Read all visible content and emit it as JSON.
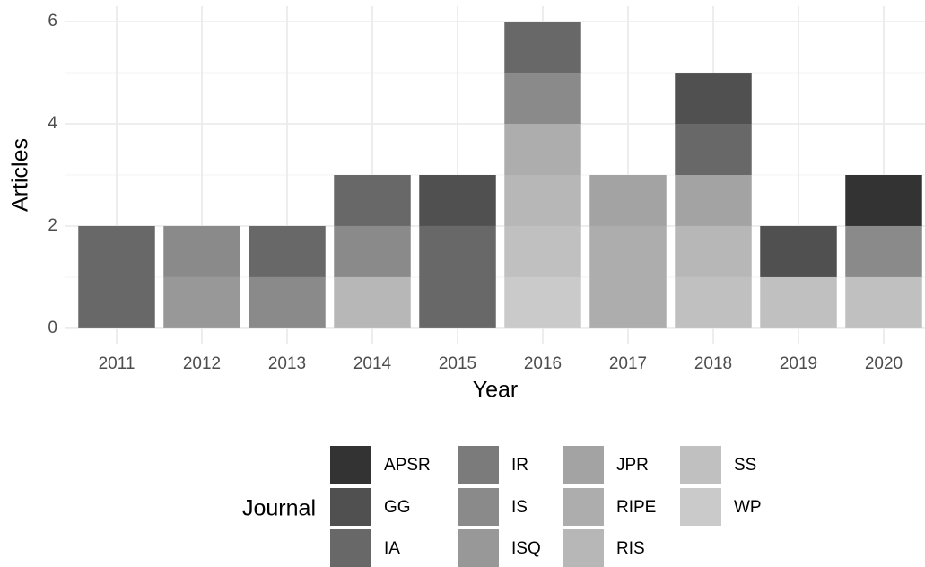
{
  "chart_data": {
    "type": "stacked_bar",
    "xlabel": "Year",
    "ylabel": "Articles",
    "legend_title": "Journal",
    "categories": [
      "2011",
      "2012",
      "2013",
      "2014",
      "2015",
      "2016",
      "2017",
      "2018",
      "2019",
      "2020"
    ],
    "series": [
      {
        "name": "APSR",
        "color": "#333333",
        "values": [
          0,
          0,
          0,
          0,
          0,
          0,
          0,
          0,
          0,
          1
        ]
      },
      {
        "name": "GG",
        "color": "#505050",
        "values": [
          0,
          0,
          0,
          0,
          1,
          0,
          0,
          1,
          1,
          0
        ]
      },
      {
        "name": "IA",
        "color": "#686868",
        "values": [
          2,
          0,
          1,
          1,
          2,
          1,
          0,
          1,
          0,
          0
        ]
      },
      {
        "name": "IR",
        "color": "#7b7b7b",
        "values": [
          0,
          0,
          0,
          0,
          0,
          0,
          0,
          0,
          0,
          0
        ]
      },
      {
        "name": "IS",
        "color": "#8a8a8a",
        "values": [
          0,
          1,
          1,
          1,
          0,
          1,
          0,
          0,
          0,
          1
        ]
      },
      {
        "name": "ISQ",
        "color": "#989898",
        "values": [
          0,
          1,
          0,
          0,
          0,
          0,
          0,
          0,
          0,
          0
        ]
      },
      {
        "name": "JPR",
        "color": "#a3a3a3",
        "values": [
          0,
          0,
          0,
          0,
          0,
          0,
          1,
          1,
          0,
          0
        ]
      },
      {
        "name": "RIPE",
        "color": "#adadad",
        "values": [
          0,
          0,
          0,
          0,
          0,
          1,
          2,
          0,
          0,
          0
        ]
      },
      {
        "name": "RIS",
        "color": "#b7b7b7",
        "values": [
          0,
          0,
          0,
          1,
          0,
          1,
          0,
          1,
          0,
          0
        ]
      },
      {
        "name": "SS",
        "color": "#c0c0c0",
        "values": [
          0,
          0,
          0,
          0,
          0,
          1,
          0,
          1,
          1,
          1
        ]
      },
      {
        "name": "WP",
        "color": "#cacaca",
        "values": [
          0,
          0,
          0,
          0,
          0,
          1,
          0,
          0,
          0,
          0
        ]
      }
    ],
    "ylim": [
      -0.3,
      6.3
    ],
    "yticks": [
      0,
      2,
      4,
      6
    ],
    "grid": true,
    "minor_grid": true,
    "legend_position": "bottom"
  }
}
